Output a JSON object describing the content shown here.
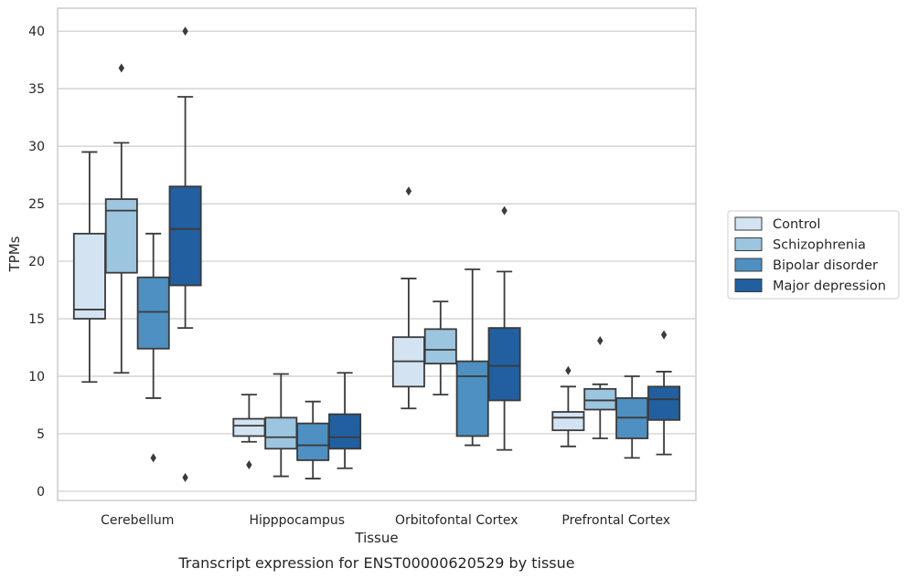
{
  "caption": "Transcript expression for ENST00000620529 by tissue",
  "colors": {
    "Control": "#d3e3f2",
    "Schizophrenia": "#9cc5df",
    "Bipolar disorder": "#4d90c1",
    "Major depression": "#215fa0",
    "edge": "#3a3a3a",
    "grid": "#cccccc",
    "frame": "#cccccc"
  },
  "chart_data": {
    "type": "box",
    "xlabel": "Tissue",
    "ylabel": "TPMs",
    "ylim": [
      -0.8,
      42.0
    ],
    "yticks": [
      0,
      5,
      10,
      15,
      20,
      25,
      30,
      35,
      40
    ],
    "grid": true,
    "legend": "right, outside plot",
    "categories": [
      "Cerebellum",
      "Hipppocampus",
      "Orbitofontal Cortex",
      "Prefrontal Cortex"
    ],
    "series": [
      {
        "name": "Control",
        "boxes": [
          {
            "whislo": 9.5,
            "q1": 15.0,
            "med": 15.8,
            "q3": 22.4,
            "whishi": 29.5,
            "fliers": []
          },
          {
            "whislo": 4.3,
            "q1": 4.8,
            "med": 5.7,
            "q3": 6.3,
            "whishi": 8.4,
            "fliers": [
              2.3
            ]
          },
          {
            "whislo": 7.2,
            "q1": 9.1,
            "med": 11.3,
            "q3": 13.4,
            "whishi": 18.5,
            "fliers": [
              26.1
            ]
          },
          {
            "whislo": 3.9,
            "q1": 5.3,
            "med": 6.4,
            "q3": 6.9,
            "whishi": 9.1,
            "fliers": [
              10.5
            ]
          }
        ]
      },
      {
        "name": "Schizophrenia",
        "boxes": [
          {
            "whislo": 10.3,
            "q1": 19.0,
            "med": 24.4,
            "q3": 25.4,
            "whishi": 30.3,
            "fliers": [
              36.8
            ]
          },
          {
            "whislo": 1.3,
            "q1": 3.7,
            "med": 4.7,
            "q3": 6.4,
            "whishi": 10.2,
            "fliers": []
          },
          {
            "whislo": 8.4,
            "q1": 11.1,
            "med": 12.3,
            "q3": 14.1,
            "whishi": 16.5,
            "fliers": []
          },
          {
            "whislo": 4.6,
            "q1": 7.1,
            "med": 7.9,
            "q3": 8.9,
            "whishi": 9.3,
            "fliers": [
              13.1
            ]
          }
        ]
      },
      {
        "name": "Bipolar disorder",
        "boxes": [
          {
            "whislo": 8.1,
            "q1": 12.4,
            "med": 15.6,
            "q3": 18.6,
            "whishi": 22.4,
            "fliers": [
              2.9
            ]
          },
          {
            "whislo": 1.1,
            "q1": 2.7,
            "med": 4.0,
            "q3": 5.9,
            "whishi": 7.8,
            "fliers": []
          },
          {
            "whislo": 4.0,
            "q1": 4.8,
            "med": 10.0,
            "q3": 11.3,
            "whishi": 19.3,
            "fliers": []
          },
          {
            "whislo": 2.9,
            "q1": 4.6,
            "med": 6.4,
            "q3": 8.1,
            "whishi": 10.0,
            "fliers": []
          }
        ]
      },
      {
        "name": "Major depression",
        "boxes": [
          {
            "whislo": 14.2,
            "q1": 17.9,
            "med": 22.8,
            "q3": 26.5,
            "whishi": 34.3,
            "fliers": [
              1.2,
              40.0
            ]
          },
          {
            "whislo": 2.0,
            "q1": 3.7,
            "med": 4.7,
            "q3": 6.7,
            "whishi": 10.3,
            "fliers": []
          },
          {
            "whislo": 3.6,
            "q1": 7.9,
            "med": 10.9,
            "q3": 14.2,
            "whishi": 19.1,
            "fliers": [
              24.4
            ]
          },
          {
            "whislo": 3.2,
            "q1": 6.2,
            "med": 8.0,
            "q3": 9.1,
            "whishi": 10.4,
            "fliers": [
              13.6
            ]
          }
        ]
      }
    ]
  }
}
